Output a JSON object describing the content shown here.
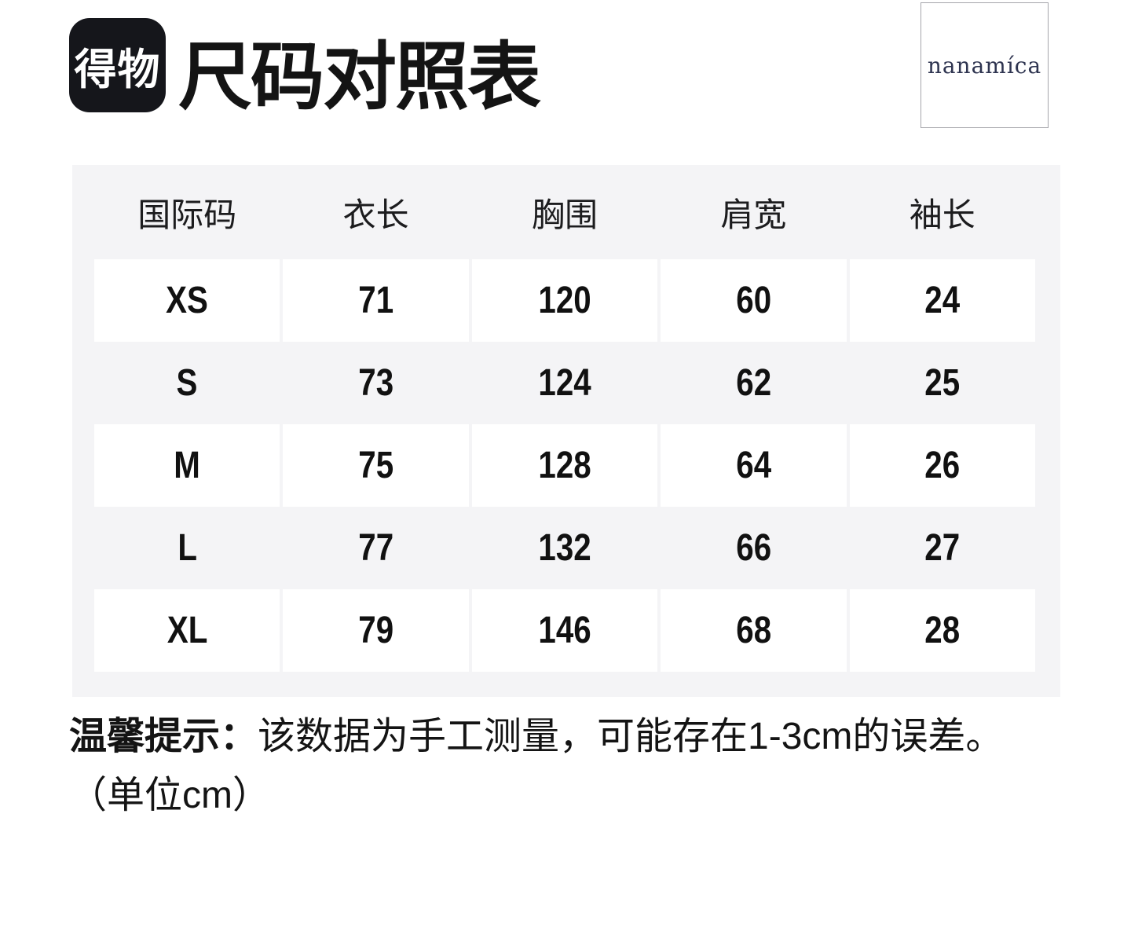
{
  "header": {
    "app_logo_text": "得物",
    "title": "尺码对照表",
    "brand_logo_text": "nanamíca"
  },
  "table": {
    "columns": [
      "国际码",
      "衣长",
      "胸围",
      "肩宽",
      "袖长"
    ],
    "rows": [
      {
        "size": "XS",
        "values": [
          "71",
          "120",
          "60",
          "24"
        ]
      },
      {
        "size": "S",
        "values": [
          "73",
          "124",
          "62",
          "25"
        ]
      },
      {
        "size": "M",
        "values": [
          "75",
          "128",
          "64",
          "26"
        ]
      },
      {
        "size": "L",
        "values": [
          "77",
          "132",
          "66",
          "27"
        ]
      },
      {
        "size": "XL",
        "values": [
          "79",
          "146",
          "68",
          "28"
        ]
      }
    ]
  },
  "footer": {
    "notice_prefix": "温馨提示：",
    "notice_body": "该数据为手工测量，可能存在1-3cm的误差。",
    "unit_note": "（单位cm）"
  },
  "colors": {
    "table_background": "#f4f4f6",
    "cell_background": "#ffffff",
    "app_logo_background": "#15161b",
    "text": "#141414",
    "brand_text": "#2e3450",
    "brand_border": "#a6a6ab"
  }
}
